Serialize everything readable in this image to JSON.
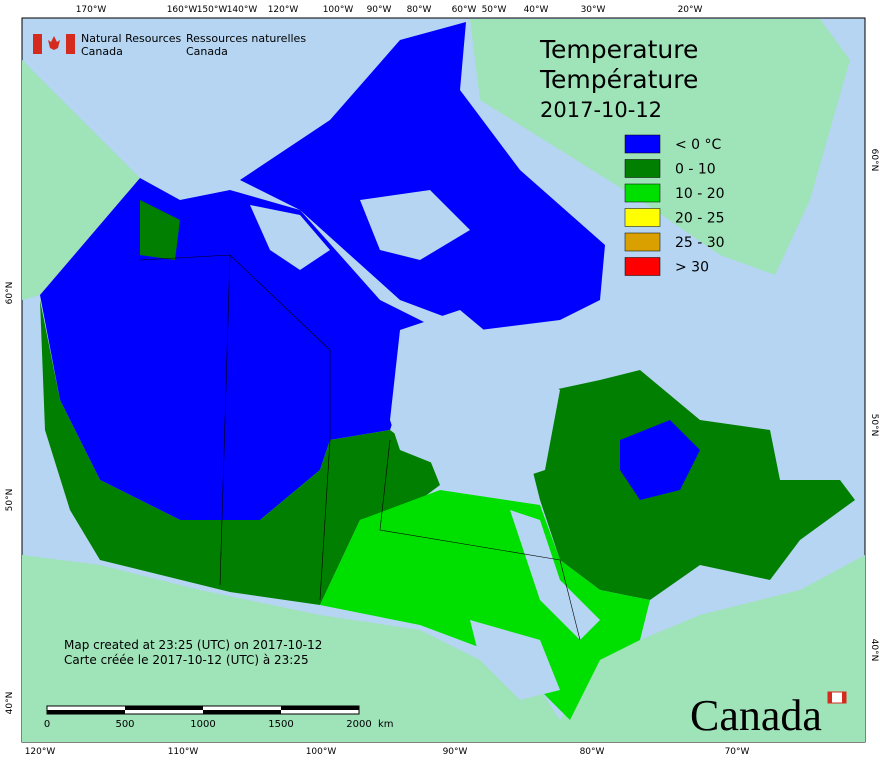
{
  "header": {
    "agency_en": [
      "Natural Resources",
      "Canada"
    ],
    "agency_fr": [
      "Ressources naturelles",
      "Canada"
    ]
  },
  "title": {
    "lines": [
      "Temperature",
      "Température"
    ],
    "date": "2017-10-12"
  },
  "legend": [
    {
      "label": "< 0 °C",
      "color": "#0000ff"
    },
    {
      "label": "0 - 10",
      "color": "#007f00"
    },
    {
      "label": "10 - 20",
      "color": "#00e000"
    },
    {
      "label": "20 - 25",
      "color": "#ffff00"
    },
    {
      "label": "25 - 30",
      "color": "#d9a000"
    },
    {
      "label": "> 30",
      "color": "#ff0000"
    }
  ],
  "axes": {
    "top": [
      "170°W",
      "160°W",
      "150°W",
      "140°W",
      "120°W",
      "100°W",
      "90°W",
      "80°W",
      "60°W",
      "50°W",
      "40°W",
      "30°W",
      "20°W"
    ],
    "bottom": [
      "120°W",
      "110°W",
      "100°W",
      "90°W",
      "80°W",
      "70°W"
    ],
    "left": [
      "60°N",
      "50°N",
      "40°N"
    ],
    "right": [
      "60°N",
      "50°N",
      "40°N"
    ]
  },
  "footer": {
    "lines": [
      "Map created at 23:25 (UTC) on 2017-10-12",
      "Carte créée le 2017-10-12 (UTC) à 23:25"
    ]
  },
  "scale_bar": {
    "labels": [
      "0",
      "500",
      "1000",
      "1500",
      "2000"
    ],
    "unit": "km"
  },
  "wordmark": "Canada"
}
